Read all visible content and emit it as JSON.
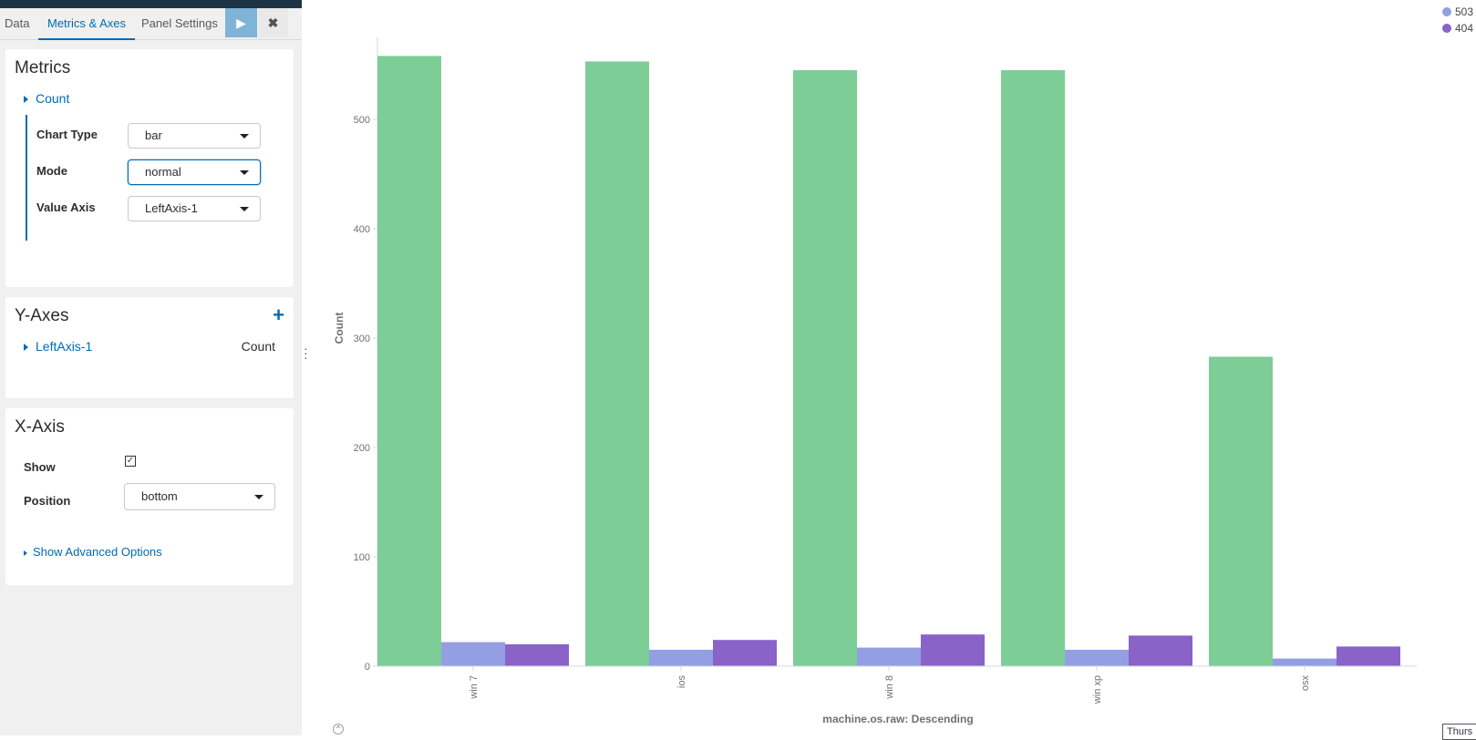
{
  "tabs": [
    {
      "label": "Data"
    },
    {
      "label": "Metrics & Axes"
    },
    {
      "label": "Panel Settings"
    }
  ],
  "toolbar": {
    "run_icon": "play-icon",
    "close_icon": "close-icon",
    "run_glyph": "▶",
    "close_glyph": "✖"
  },
  "metrics": {
    "title": "Metrics",
    "item_label": "Count",
    "chart_type_label": "Chart Type",
    "chart_type_value": "bar",
    "mode_label": "Mode",
    "mode_value": "normal",
    "value_axis_label": "Value Axis",
    "value_axis_value": "LeftAxis-1"
  },
  "y_axes": {
    "title": "Y-Axes",
    "add_glyph": "+",
    "item_label": "LeftAxis-1",
    "item_value": "Count"
  },
  "x_axis": {
    "title": "X-Axis",
    "show_label": "Show",
    "show_checked": true,
    "check_glyph": "✓",
    "position_label": "Position",
    "position_value": "bottom",
    "advanced_link": "Show Advanced Options"
  },
  "colors": {
    "series_green": "#7dce96",
    "series_503": "#939fe2",
    "series_404": "#8963c7",
    "accent": "#006bb4"
  },
  "time_badge": "Thurs",
  "collapse_glyph": "^",
  "chart_data": {
    "type": "bar",
    "categories": [
      "win 7",
      "ios",
      "win 8",
      "win xp",
      "osx"
    ],
    "series": [
      {
        "values": [
          558,
          553,
          545,
          545,
          283
        ]
      },
      {
        "name": "503",
        "values": [
          22,
          15,
          17,
          15,
          7
        ]
      },
      {
        "name": "404",
        "values": [
          20,
          24,
          29,
          28,
          18
        ]
      }
    ],
    "ylabel": "Count",
    "xlabel": "machine.os.raw: Descending",
    "ylim": [
      0,
      600
    ],
    "yticks": [
      0,
      100,
      200,
      300,
      400,
      500
    ],
    "legend": [
      "503",
      "404"
    ],
    "legend_position": "top-right",
    "grid": false
  }
}
